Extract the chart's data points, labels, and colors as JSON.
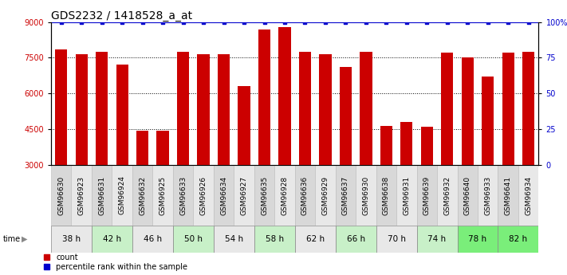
{
  "title": "GDS2232 / 1418528_a_at",
  "samples": [
    "GSM96630",
    "GSM96923",
    "GSM96631",
    "GSM96924",
    "GSM96632",
    "GSM96925",
    "GSM96633",
    "GSM96926",
    "GSM96634",
    "GSM96927",
    "GSM96635",
    "GSM96928",
    "GSM96636",
    "GSM96929",
    "GSM96637",
    "GSM96930",
    "GSM96638",
    "GSM96931",
    "GSM96639",
    "GSM96932",
    "GSM96640",
    "GSM96933",
    "GSM96641",
    "GSM96934"
  ],
  "counts": [
    7850,
    7650,
    7750,
    7200,
    4450,
    4450,
    7750,
    7650,
    7650,
    6300,
    8700,
    8800,
    7750,
    7650,
    7100,
    7750,
    4650,
    4800,
    4600,
    7700,
    7500,
    6700,
    7700,
    7750
  ],
  "percentile_ranks": [
    100,
    100,
    100,
    100,
    100,
    100,
    100,
    100,
    100,
    100,
    100,
    100,
    100,
    100,
    100,
    100,
    100,
    100,
    100,
    100,
    100,
    100,
    100,
    100
  ],
  "time_groups": [
    {
      "label": "38 h",
      "start": 0,
      "end": 2,
      "shade": 0
    },
    {
      "label": "42 h",
      "start": 2,
      "end": 4,
      "shade": 1
    },
    {
      "label": "46 h",
      "start": 4,
      "end": 6,
      "shade": 0
    },
    {
      "label": "50 h",
      "start": 6,
      "end": 8,
      "shade": 1
    },
    {
      "label": "54 h",
      "start": 8,
      "end": 10,
      "shade": 0
    },
    {
      "label": "58 h",
      "start": 10,
      "end": 12,
      "shade": 1
    },
    {
      "label": "62 h",
      "start": 12,
      "end": 14,
      "shade": 0
    },
    {
      "label": "66 h",
      "start": 14,
      "end": 16,
      "shade": 1
    },
    {
      "label": "70 h",
      "start": 16,
      "end": 18,
      "shade": 0
    },
    {
      "label": "74 h",
      "start": 18,
      "end": 20,
      "shade": 1
    },
    {
      "label": "78 h",
      "start": 20,
      "end": 22,
      "shade": 2
    },
    {
      "label": "82 h",
      "start": 22,
      "end": 24,
      "shade": 2
    }
  ],
  "bar_color": "#cc0000",
  "dot_color": "#0000cc",
  "ylim_left": [
    3000,
    9000
  ],
  "ylim_right": [
    0,
    100
  ],
  "yticks_left": [
    3000,
    4500,
    6000,
    7500,
    9000
  ],
  "yticks_right": [
    0,
    25,
    50,
    75,
    100
  ],
  "bg_color": "#ffffff",
  "shade_color_0": "#e8e8e8",
  "shade_color_1": "#c8f0c8",
  "shade_color_2": "#7aee7a",
  "sample_bg_even": "#d8d8d8",
  "sample_bg_odd": "#e8e8e8",
  "tick_label_color_left": "#cc0000",
  "tick_label_color_right": "#0000cc",
  "bar_width": 0.6,
  "title_fontsize": 10,
  "tick_fontsize": 7,
  "sample_fontsize": 6.5
}
